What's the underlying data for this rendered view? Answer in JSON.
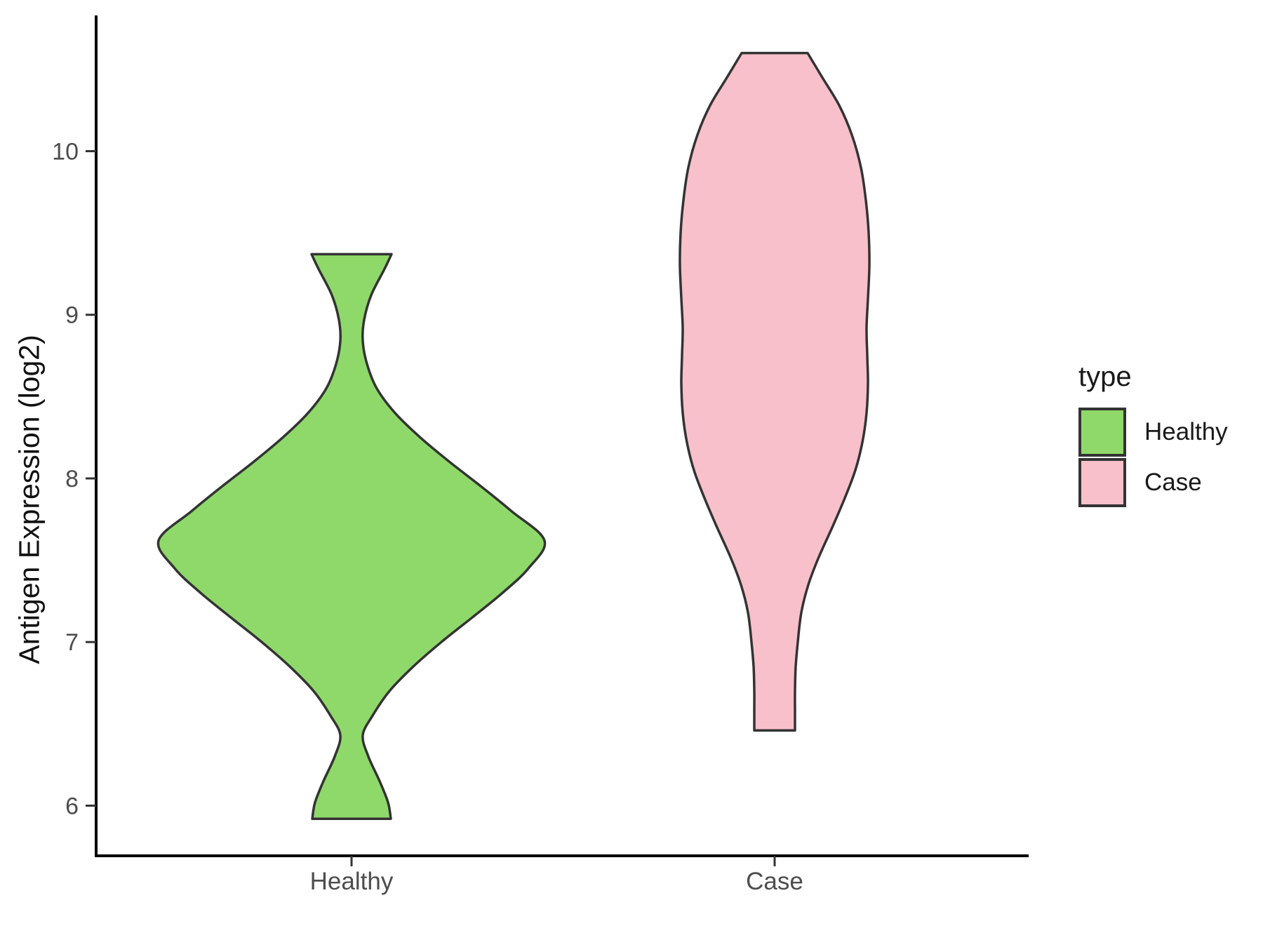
{
  "figure": {
    "background": "#ffffff"
  },
  "axes": {
    "y_title": "Antigen Expression (log2)",
    "y_tick_labels": [
      "6",
      "7",
      "8",
      "9",
      "10"
    ],
    "x_category_labels": [
      "Healthy",
      "Case"
    ],
    "axis_line_color": "#000000",
    "tick_mark_color": "#333333",
    "tick_text_color": "#4d4d4d",
    "title_text_color": "#111111"
  },
  "legend": {
    "title": "type",
    "items": [
      {
        "label": "Healthy",
        "color": "#8FD96A"
      },
      {
        "label": "Case",
        "color": "#F8C0CB"
      }
    ]
  },
  "chart_data": {
    "type": "violin",
    "title": "",
    "xlabel": "",
    "ylabel": "Antigen Expression (log2)",
    "categories": [
      "Healthy",
      "Case"
    ],
    "y_ticks": [
      6,
      7,
      8,
      9,
      10
    ],
    "ylim": [
      5.6,
      10.85
    ],
    "grid": false,
    "legend_position": "right",
    "outline_color": "#333333",
    "series": [
      {
        "name": "Healthy",
        "color": "#8FD96A",
        "data_range": [
          5.92,
          9.37
        ],
        "features": {
          "flat_top_value": 9.37,
          "upper_neck_value": 8.84,
          "max_bulge_value": 7.62,
          "lower_neck_value": 6.43,
          "flat_bottom_value": 5.92
        },
        "profile": [
          [
            9.37,
            57
          ],
          [
            9.28,
            47
          ],
          [
            9.12,
            28
          ],
          [
            8.97,
            18
          ],
          [
            8.84,
            16
          ],
          [
            8.7,
            22
          ],
          [
            8.55,
            36
          ],
          [
            8.4,
            62
          ],
          [
            8.25,
            98
          ],
          [
            8.1,
            140
          ],
          [
            7.95,
            185
          ],
          [
            7.8,
            228
          ],
          [
            7.62,
            275
          ],
          [
            7.45,
            252
          ],
          [
            7.3,
            215
          ],
          [
            7.15,
            172
          ],
          [
            7.0,
            128
          ],
          [
            6.85,
            88
          ],
          [
            6.7,
            54
          ],
          [
            6.55,
            30
          ],
          [
            6.43,
            16
          ],
          [
            6.3,
            24
          ],
          [
            6.15,
            40
          ],
          [
            6.02,
            52
          ],
          [
            5.92,
            56
          ]
        ]
      },
      {
        "name": "Case",
        "color": "#F8C0CB",
        "data_range": [
          6.46,
          10.6
        ],
        "features": {
          "flat_top_value": 10.6,
          "max_bulge_value": 9.3,
          "stem_start_value": 7.0,
          "flat_bottom_value": 6.46
        },
        "profile": [
          [
            10.6,
            47
          ],
          [
            10.45,
            68
          ],
          [
            10.28,
            92
          ],
          [
            10.1,
            110
          ],
          [
            9.9,
            123
          ],
          [
            9.7,
            130
          ],
          [
            9.5,
            134
          ],
          [
            9.3,
            135
          ],
          [
            9.1,
            133
          ],
          [
            8.92,
            131
          ],
          [
            8.75,
            132
          ],
          [
            8.58,
            133
          ],
          [
            8.4,
            131
          ],
          [
            8.22,
            125
          ],
          [
            8.05,
            115
          ],
          [
            7.88,
            100
          ],
          [
            7.7,
            82
          ],
          [
            7.52,
            63
          ],
          [
            7.35,
            48
          ],
          [
            7.18,
            38
          ],
          [
            7.0,
            33
          ],
          [
            6.85,
            30
          ],
          [
            6.7,
            29
          ],
          [
            6.58,
            29
          ],
          [
            6.46,
            29
          ]
        ]
      }
    ]
  }
}
